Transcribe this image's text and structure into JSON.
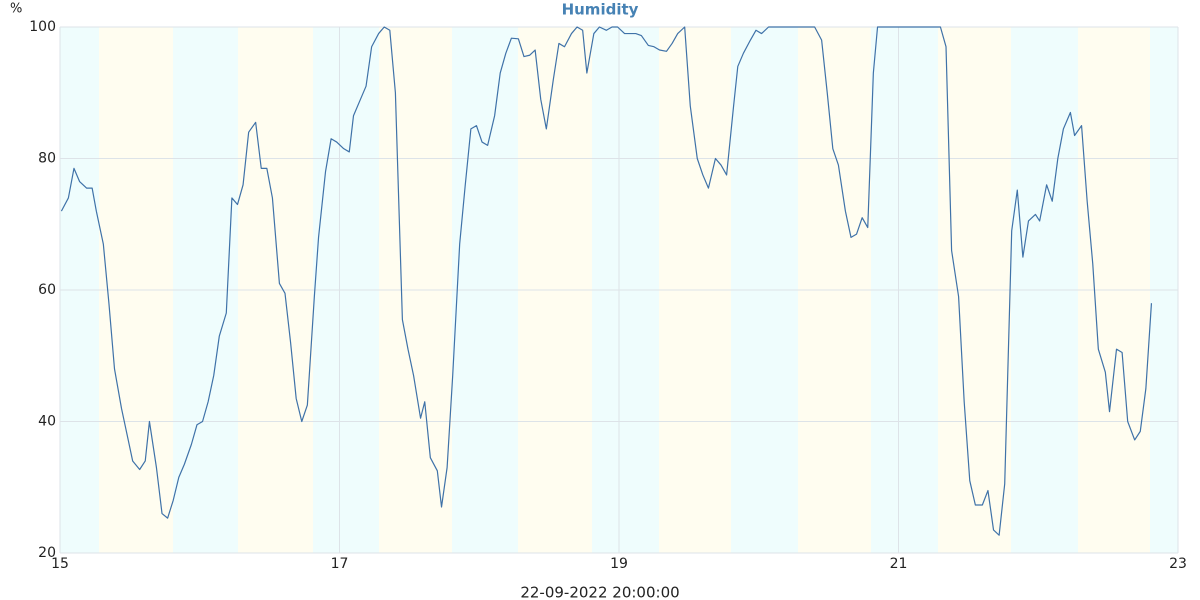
{
  "chart_data": {
    "type": "line",
    "title": "Humidity",
    "ylabel": "%",
    "xlabel": "22-09-2022 20:00:00",
    "xlim": [
      15,
      23
    ],
    "xticks": [
      15,
      17,
      19,
      21,
      23
    ],
    "ylim": [
      20,
      100
    ],
    "yticks": [
      20,
      40,
      60,
      80,
      100
    ],
    "grid": true,
    "series": [
      {
        "name": "Humidity",
        "color": "#3f72a8",
        "x": [
          15.01,
          15.06,
          15.1,
          15.14,
          15.19,
          15.23,
          15.26,
          15.31,
          15.35,
          15.39,
          15.44,
          15.48,
          15.52,
          15.57,
          15.61,
          15.64,
          15.69,
          15.73,
          15.77,
          15.81,
          15.85,
          15.89,
          15.94,
          15.98,
          16.02,
          16.06,
          16.1,
          16.14,
          16.19,
          16.23,
          16.27,
          16.31,
          16.35,
          16.4,
          16.44,
          16.48,
          16.52,
          16.57,
          16.61,
          16.65,
          16.69,
          16.73,
          16.77,
          16.82,
          16.85,
          16.9,
          16.94,
          16.98,
          17.03,
          17.07,
          17.1,
          17.15,
          17.19,
          17.23,
          17.28,
          17.32,
          17.36,
          17.4,
          17.45,
          17.49,
          17.53,
          17.58,
          17.61,
          17.65,
          17.7,
          17.73,
          17.77,
          17.81,
          17.86,
          17.9,
          17.94,
          17.98,
          18.02,
          18.06,
          18.11,
          18.15,
          18.19,
          18.23,
          18.28,
          18.32,
          18.36,
          18.4,
          18.44,
          18.48,
          18.53,
          18.57,
          18.61,
          18.66,
          18.7,
          18.74,
          18.77,
          18.82,
          18.86,
          18.91,
          18.95,
          18.99,
          19.04,
          19.08,
          19.12,
          19.16,
          19.21,
          19.25,
          19.29,
          19.34,
          19.38,
          19.42,
          19.47,
          19.51,
          19.56,
          19.6,
          19.64,
          19.69,
          19.73,
          19.77,
          19.82,
          19.85,
          19.89,
          19.94,
          19.98,
          20.02,
          20.07,
          20.4,
          20.45,
          20.49,
          20.53,
          20.57,
          20.62,
          20.66,
          20.7,
          20.74,
          20.78,
          20.82,
          20.85,
          21.3,
          21.34,
          21.38,
          21.43,
          21.47,
          21.51,
          21.55,
          21.6,
          21.64,
          21.68,
          21.72,
          21.76,
          21.81,
          21.85,
          21.89,
          21.93,
          21.98,
          22.01,
          22.06,
          22.1,
          22.14,
          22.18,
          22.23,
          22.26,
          22.31,
          22.35,
          22.39,
          22.43,
          22.48,
          22.51,
          22.56,
          22.6,
          22.64,
          22.69,
          22.73,
          22.77,
          22.81
        ],
        "values": [
          72,
          74,
          78.5,
          76.5,
          75.5,
          75.5,
          72,
          67,
          58,
          48,
          42,
          38,
          34,
          32.7,
          34,
          40,
          33,
          26,
          25.3,
          28,
          31.5,
          33.5,
          36.5,
          39.5,
          40,
          43,
          47,
          53,
          56.5,
          74,
          73,
          76,
          84,
          85.5,
          78.5,
          78.5,
          74,
          61,
          59.5,
          52,
          43.5,
          40,
          42.5,
          59,
          68,
          78,
          83,
          82.5,
          81.5,
          81,
          86.5,
          89,
          91,
          97,
          99,
          100,
          99.5,
          90,
          55.5,
          51,
          47,
          40.5,
          43,
          34.5,
          32.5,
          27,
          33,
          47,
          67,
          76,
          84.5,
          85,
          82.5,
          82,
          86.5,
          93,
          96,
          98.3,
          98.2,
          95.5,
          95.7,
          96.5,
          89,
          84.5,
          92,
          97.5,
          97,
          99,
          100,
          99.5,
          93,
          99,
          100,
          99.5,
          100,
          100,
          99,
          99,
          99,
          98.7,
          97.2,
          97,
          96.5,
          96.3,
          97.5,
          99,
          100,
          88,
          80,
          77.5,
          75.5,
          80,
          79,
          77.5,
          88,
          94,
          96,
          98,
          99.5,
          99,
          100,
          100,
          98,
          90,
          81.5,
          79,
          72,
          68,
          68.5,
          71,
          69.5,
          93,
          100,
          100,
          97,
          66,
          59,
          43,
          31,
          27.3,
          27.3,
          29.5,
          23.5,
          22.7,
          30.5,
          69,
          75.2,
          65,
          70.5,
          71.5,
          70.5,
          76,
          73.5,
          80,
          84.5,
          87,
          83.5,
          85,
          73.5,
          64,
          51,
          47.5,
          41.5,
          51,
          50.5,
          40,
          37.2,
          38.5,
          45,
          58
        ]
      }
    ]
  }
}
